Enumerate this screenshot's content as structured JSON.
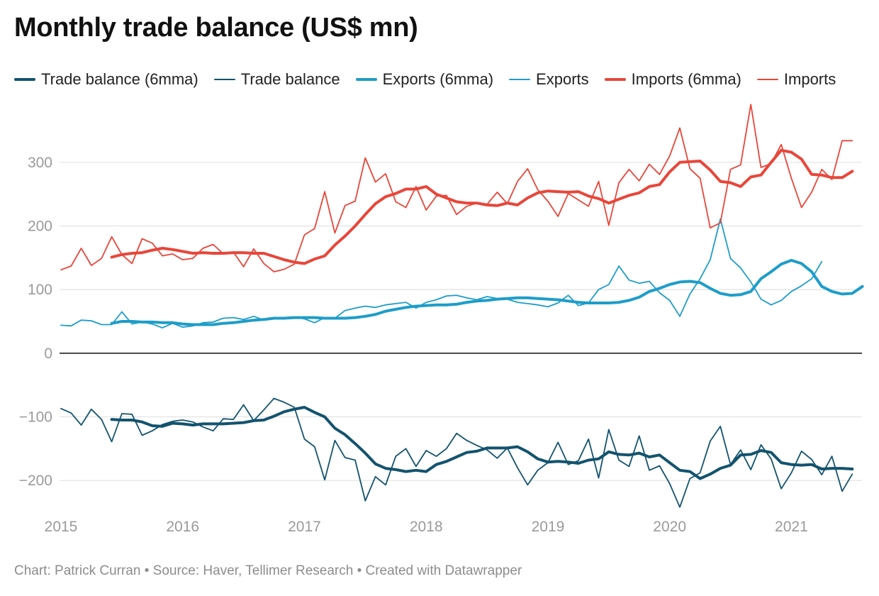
{
  "chart_data": {
    "type": "line",
    "title": "Monthly trade balance (US$ mn)",
    "xlabel": "",
    "ylabel": "",
    "x_ticks": [
      "2015",
      "2016",
      "2017",
      "2018",
      "2019",
      "2020",
      "2021"
    ],
    "x_start_year": 2015,
    "x_range": [
      2015.0,
      2021.58
    ],
    "y_ticks": [
      300,
      200,
      100,
      0,
      -100,
      -200
    ],
    "y_tick_labels": [
      "300",
      "200",
      "100",
      "0",
      "−100",
      "−200"
    ],
    "ylim": [
      -250,
      360
    ],
    "grid": true,
    "legend_position": "top-left",
    "series": [
      {
        "name": "Trade balance (6mma)",
        "color": "#13536e",
        "width": 4,
        "start_month": 5,
        "values": [
          -104,
          -105,
          -105,
          -108,
          -114,
          -115,
          -110,
          -111,
          -113,
          -111,
          -111,
          -111,
          -110,
          -109,
          -106,
          -105,
          -99,
          -92,
          -88,
          -85,
          -93,
          -100,
          -118,
          -128,
          -142,
          -157,
          -174,
          -181,
          -183,
          -186,
          -184,
          -186,
          -175,
          -170,
          -163,
          -156,
          -154,
          -149,
          -149,
          -149,
          -147,
          -155,
          -166,
          -171,
          -170,
          -171,
          -173,
          -168,
          -166,
          -155,
          -159,
          -160,
          -157,
          -163,
          -160,
          -172,
          -184,
          -186,
          -197,
          -190,
          -181,
          -176,
          -160,
          -159,
          -153,
          -156,
          -172,
          -175,
          -176,
          -175,
          -182,
          -181,
          -181,
          -182
        ]
      },
      {
        "name": "Trade balance",
        "color": "#13536e",
        "width": 1.8,
        "start_month": 0,
        "values": [
          -87,
          -94,
          -113,
          -88,
          -104,
          -139,
          -95,
          -96,
          -129,
          -122,
          -112,
          -107,
          -105,
          -108,
          -116,
          -122,
          -103,
          -104,
          -81,
          -106,
          -89,
          -71,
          -77,
          -85,
          -135,
          -147,
          -199,
          -137,
          -164,
          -168,
          -232,
          -194,
          -207,
          -162,
          -150,
          -178,
          -153,
          -162,
          -150,
          -126,
          -137,
          -145,
          -152,
          -165,
          -149,
          -180,
          -207,
          -184,
          -172,
          -140,
          -175,
          -169,
          -135,
          -196,
          -120,
          -168,
          -178,
          -130,
          -184,
          -177,
          -205,
          -242,
          -197,
          -188,
          -138,
          -115,
          -175,
          -152,
          -183,
          -144,
          -166,
          -213,
          -188,
          -154,
          -167,
          -191,
          -162,
          -217,
          -190
        ]
      },
      {
        "name": "Exports (6mma)",
        "color": "#1e9dc9",
        "width": 4,
        "start_month": 5,
        "values": [
          47,
          50,
          50,
          49,
          49,
          48,
          48,
          46,
          45,
          45,
          45,
          47,
          48,
          50,
          52,
          53,
          55,
          55,
          56,
          56,
          56,
          55,
          55,
          55,
          56,
          58,
          61,
          66,
          69,
          72,
          74,
          75,
          76,
          76,
          77,
          80,
          82,
          83,
          85,
          86,
          87,
          87,
          86,
          85,
          84,
          82,
          80,
          79,
          79,
          79,
          80,
          83,
          88,
          97,
          102,
          108,
          112,
          113,
          111,
          102,
          94,
          91,
          92,
          97,
          117,
          128,
          140,
          146,
          141,
          128,
          105,
          97,
          93,
          94,
          105
        ]
      },
      {
        "name": "Exports",
        "color": "#1e9dc9",
        "width": 1.8,
        "start_month": 0,
        "values": [
          44,
          43,
          52,
          51,
          45,
          45,
          65,
          46,
          49,
          46,
          40,
          47,
          41,
          43,
          48,
          49,
          55,
          56,
          53,
          58,
          52,
          55,
          56,
          57,
          54,
          48,
          56,
          55,
          67,
          71,
          74,
          72,
          76,
          78,
          80,
          71,
          80,
          84,
          90,
          91,
          87,
          84,
          89,
          86,
          85,
          80,
          78,
          76,
          73,
          79,
          91,
          75,
          79,
          100,
          108,
          137,
          115,
          110,
          113,
          95,
          83,
          58,
          93,
          117,
          147,
          211,
          149,
          134,
          112,
          85,
          76,
          83,
          97,
          106,
          117,
          144
        ]
      },
      {
        "name": "Imports (6mma)",
        "color": "#e8463a",
        "width": 4,
        "start_month": 5,
        "values": [
          151,
          155,
          157,
          158,
          162,
          165,
          163,
          160,
          157,
          158,
          157,
          157,
          158,
          158,
          157,
          157,
          152,
          147,
          143,
          141,
          148,
          153,
          170,
          184,
          200,
          218,
          235,
          246,
          251,
          258,
          258,
          262,
          250,
          244,
          238,
          236,
          236,
          233,
          232,
          236,
          233,
          244,
          252,
          255,
          254,
          253,
          254,
          247,
          243,
          236,
          242,
          248,
          252,
          262,
          265,
          285,
          300,
          301,
          302,
          288,
          270,
          268,
          262,
          277,
          280,
          300,
          319,
          316,
          305,
          281,
          280,
          276,
          276,
          286
        ]
      },
      {
        "name": "Imports",
        "color": "#e8463a",
        "width": 1.8,
        "start_month": 0,
        "values": [
          131,
          137,
          165,
          138,
          149,
          183,
          155,
          141,
          180,
          173,
          153,
          156,
          147,
          149,
          165,
          171,
          156,
          159,
          136,
          164,
          141,
          128,
          132,
          140,
          186,
          196,
          254,
          189,
          232,
          239,
          307,
          269,
          282,
          238,
          229,
          262,
          225,
          247,
          248,
          218,
          231,
          236,
          234,
          253,
          235,
          270,
          290,
          257,
          239,
          215,
          251,
          241,
          231,
          270,
          201,
          268,
          289,
          271,
          297,
          281,
          310,
          354,
          290,
          275,
          197,
          205,
          289,
          296,
          391,
          292,
          298,
          328,
          275,
          229,
          253,
          289,
          273,
          334,
          334
        ]
      }
    ],
    "source_note": "Chart: Patrick Curran • Source: Haver, Tellimer Research • Created with Datawrapper"
  }
}
